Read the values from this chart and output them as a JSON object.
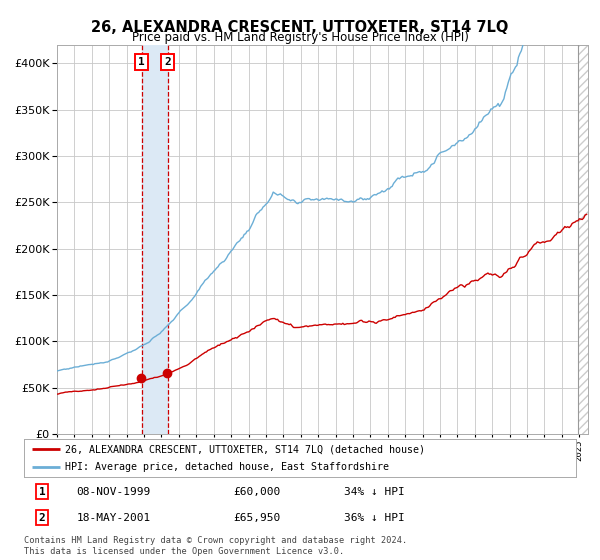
{
  "title": "26, ALEXANDRA CRESCENT, UTTOXETER, ST14 7LQ",
  "subtitle": "Price paid vs. HM Land Registry's House Price Index (HPI)",
  "legend_line1": "26, ALEXANDRA CRESCENT, UTTOXETER, ST14 7LQ (detached house)",
  "legend_line2": "HPI: Average price, detached house, East Staffordshire",
  "table_row1": [
    "1",
    "08-NOV-1999",
    "£60,000",
    "34% ↓ HPI"
  ],
  "table_row2": [
    "2",
    "18-MAY-2001",
    "£65,950",
    "36% ↓ HPI"
  ],
  "footer": "Contains HM Land Registry data © Crown copyright and database right 2024.\nThis data is licensed under the Open Government Licence v3.0.",
  "hpi_color": "#6baed6",
  "price_color": "#cc0000",
  "marker_color": "#cc0000",
  "bg_color": "#ffffff",
  "grid_color": "#c8c8c8",
  "vspan_color": "#dce9f5",
  "vline_color": "#cc0000",
  "hatch_color": "#cccccc",
  "sale1_date": 1999.854,
  "sale2_date": 2001.371,
  "sale1_price": 60000,
  "sale2_price": 65950,
  "ylim": [
    0,
    420000
  ],
  "xlim_start": 1995.0,
  "xlim_end": 2025.5,
  "hatch_start": 2024.917
}
